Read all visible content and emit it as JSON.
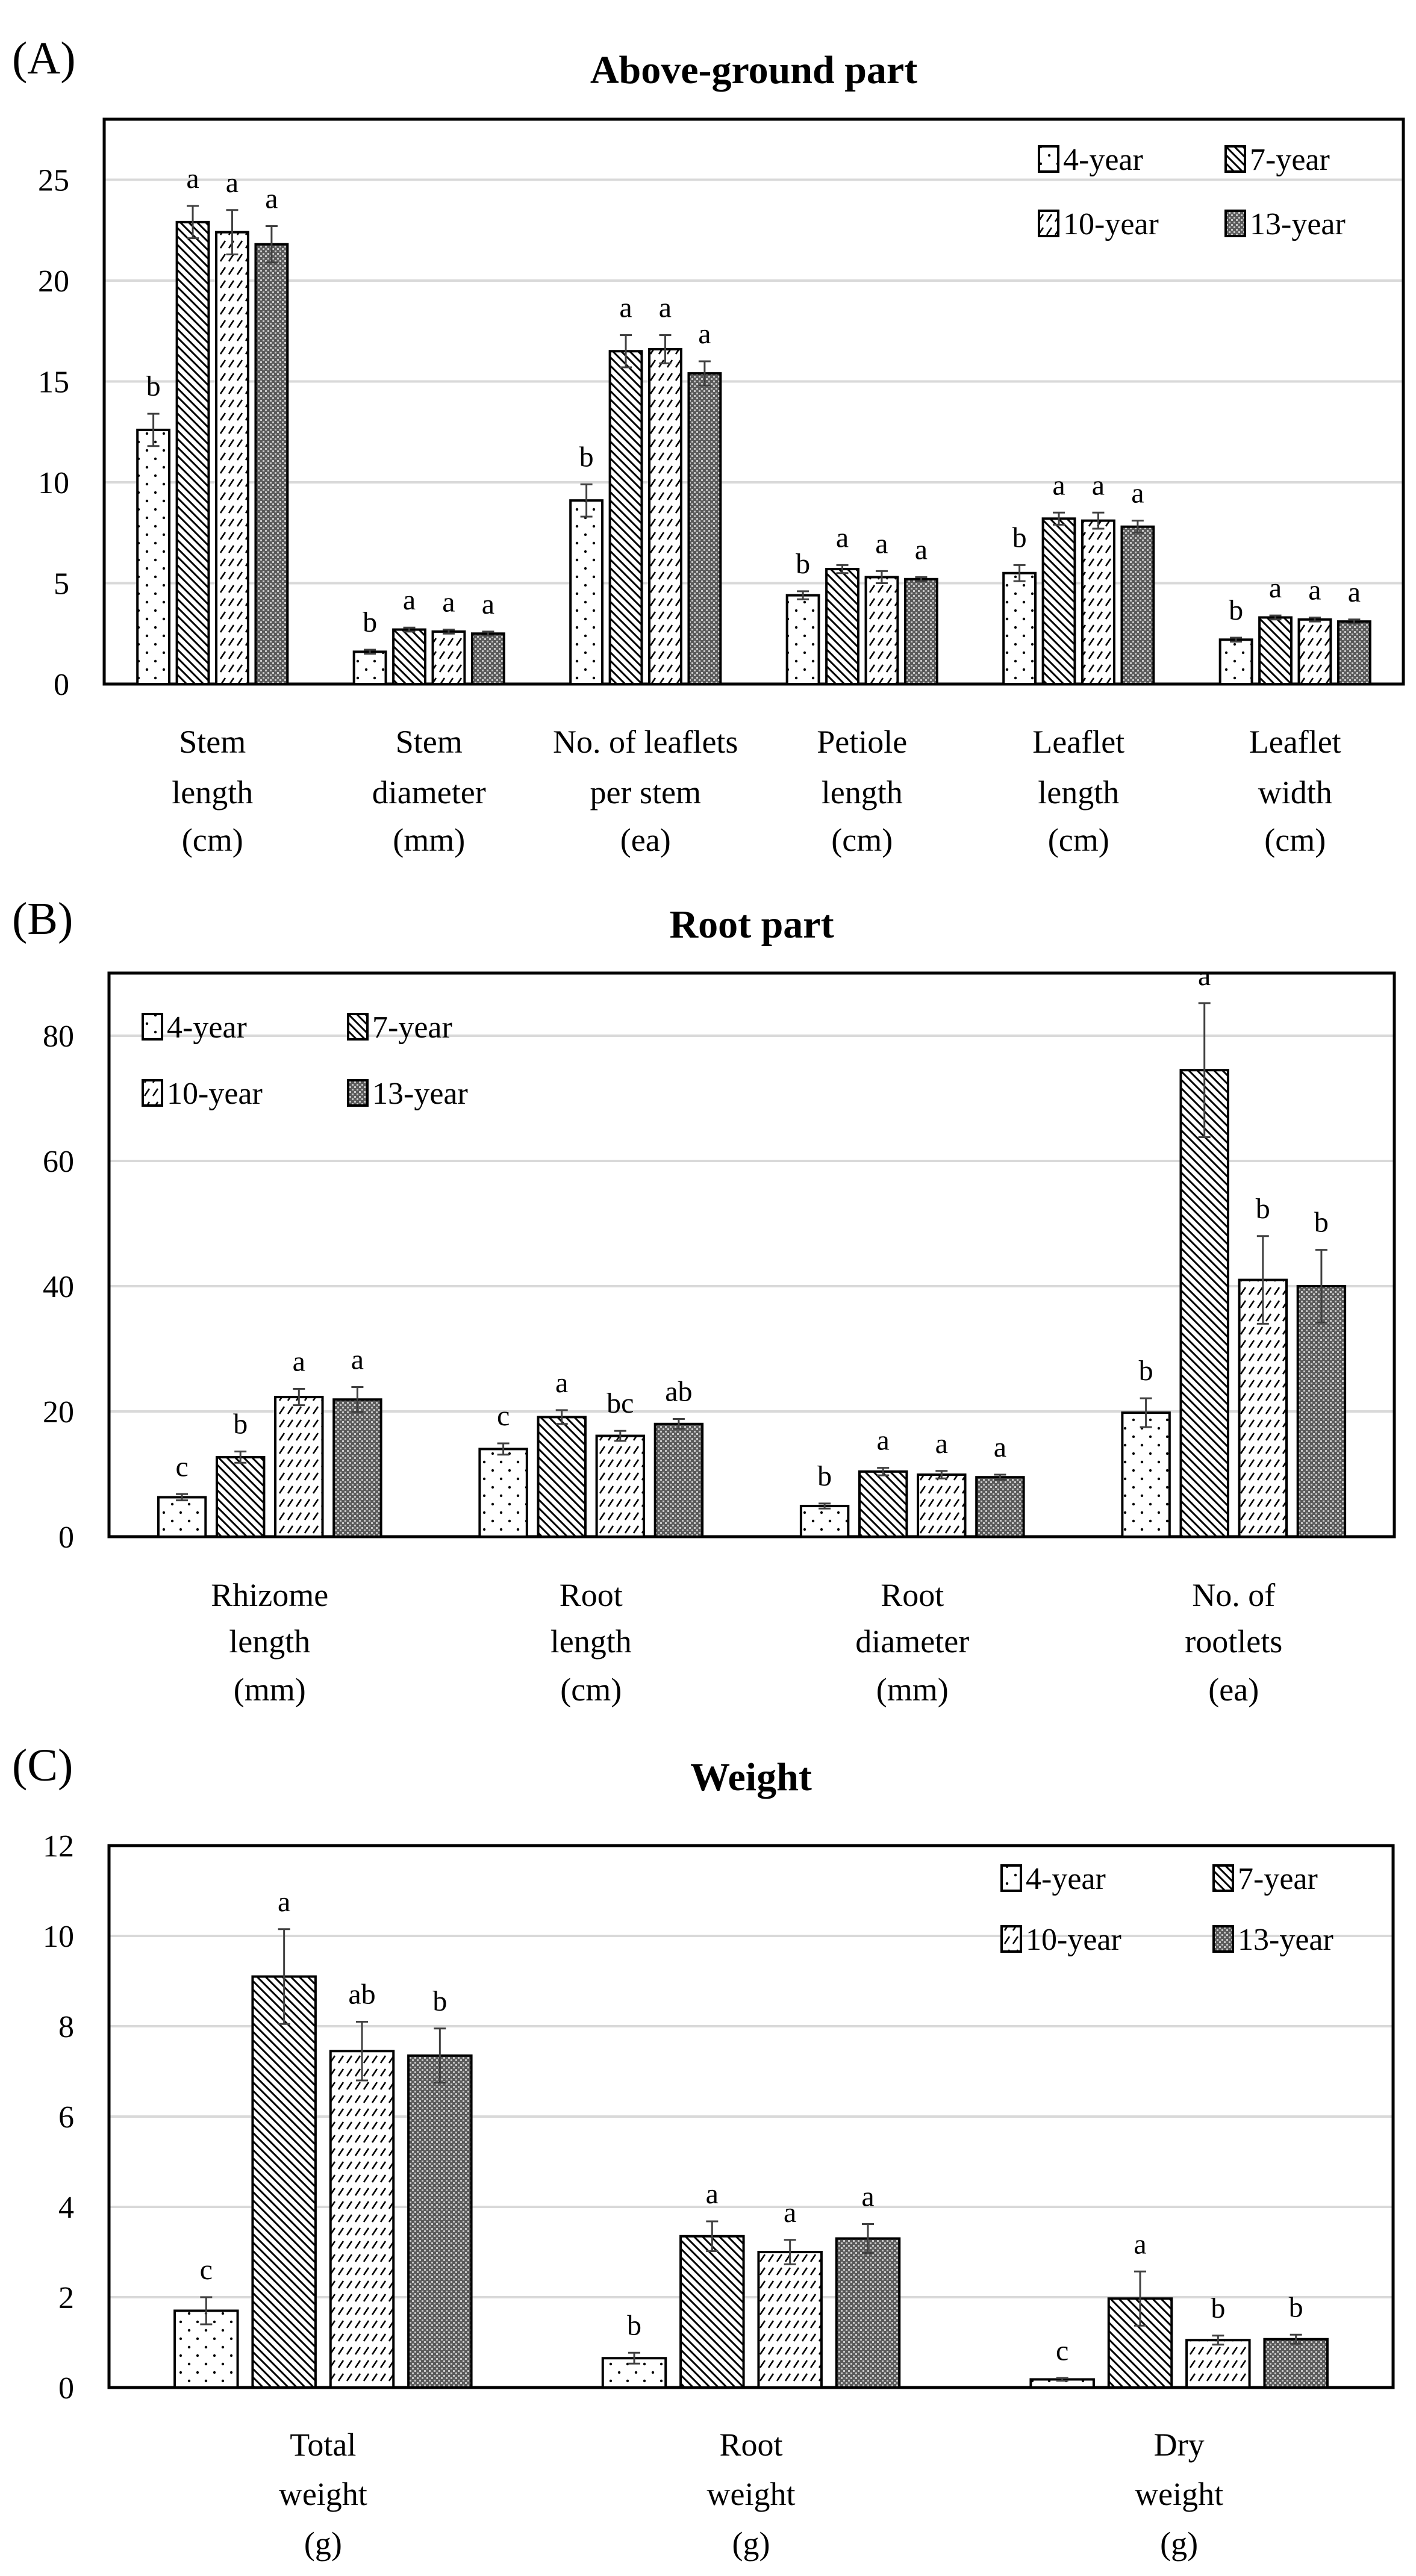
{
  "legend": [
    "4-year",
    "7-year",
    "10-year",
    "13-year"
  ],
  "colors": {
    "axis": "#000000",
    "grid": "#d9d9d9",
    "errorbar": "#404040",
    "dark_fill": "#5a5a5a"
  },
  "chart_data": [
    {
      "type": "bar",
      "panel_label": "(A)",
      "title": "Above-ground part",
      "legend_position": "top-right",
      "ylim": [
        0,
        28
      ],
      "yticks": [
        0,
        5,
        10,
        15,
        20,
        25
      ],
      "grid": true,
      "categories": [
        [
          "Stem",
          "length",
          "(cm)"
        ],
        [
          "Stem",
          "diameter",
          "(mm)"
        ],
        [
          "No. of leaflets",
          "per stem",
          "(ea)"
        ],
        [
          "Petiole",
          "length",
          "(cm)"
        ],
        [
          "Leaflet",
          "length",
          "(cm)"
        ],
        [
          "Leaflet",
          "width",
          "(cm)"
        ]
      ],
      "series": [
        {
          "name": "4-year",
          "values": [
            12.6,
            1.6,
            9.1,
            4.4,
            5.5,
            2.2
          ],
          "errors": [
            0.8,
            0.1,
            0.8,
            0.2,
            0.4,
            0.1
          ],
          "letters": [
            "b",
            "b",
            "b",
            "b",
            "b",
            "b"
          ]
        },
        {
          "name": "7-year",
          "values": [
            22.9,
            2.7,
            16.5,
            5.7,
            8.2,
            3.3
          ],
          "errors": [
            0.8,
            0.1,
            0.8,
            0.2,
            0.3,
            0.1
          ],
          "letters": [
            "a",
            "a",
            "a",
            "a",
            "a",
            "a"
          ]
        },
        {
          "name": "10-year",
          "values": [
            22.4,
            2.6,
            16.6,
            5.3,
            8.1,
            3.2
          ],
          "errors": [
            1.1,
            0.1,
            0.7,
            0.3,
            0.4,
            0.1
          ],
          "letters": [
            "a",
            "a",
            "a",
            "a",
            "a",
            "a"
          ]
        },
        {
          "name": "13-year",
          "values": [
            21.8,
            2.5,
            15.4,
            5.2,
            7.8,
            3.1
          ],
          "errors": [
            0.9,
            0.1,
            0.6,
            0.1,
            0.3,
            0.1
          ],
          "letters": [
            "a",
            "a",
            "a",
            "a",
            "a",
            "a"
          ]
        }
      ]
    },
    {
      "type": "bar",
      "panel_label": "(B)",
      "title": "Root part",
      "legend_position": "top-left",
      "ylim": [
        0,
        90
      ],
      "yticks": [
        0,
        20,
        40,
        60,
        80
      ],
      "grid": true,
      "categories": [
        [
          "Rhizome",
          "length",
          "(mm)"
        ],
        [
          "Root",
          "length",
          "(cm)"
        ],
        [
          "Root",
          "diameter",
          "(mm)"
        ],
        [
          "No. of",
          "rootlets",
          "(ea)"
        ]
      ],
      "series": [
        {
          "name": "4-year",
          "values": [
            6.3,
            14.0,
            4.9,
            19.8
          ],
          "errors": [
            0.5,
            0.9,
            0.4,
            2.3
          ],
          "letters": [
            "c",
            "c",
            "b",
            "b"
          ]
        },
        {
          "name": "7-year",
          "values": [
            12.7,
            19.1,
            10.4,
            74.5
          ],
          "errors": [
            0.9,
            1.1,
            0.6,
            10.7
          ],
          "letters": [
            "b",
            "a",
            "a",
            "a"
          ]
        },
        {
          "name": "10-year",
          "values": [
            22.3,
            16.1,
            9.9,
            41.0
          ],
          "errors": [
            1.3,
            0.8,
            0.6,
            7.0
          ],
          "letters": [
            "a",
            "bc",
            "a",
            "b"
          ]
        },
        {
          "name": "13-year",
          "values": [
            21.9,
            18.0,
            9.5,
            40.0
          ],
          "errors": [
            2.0,
            0.8,
            0.4,
            5.8
          ],
          "letters": [
            "a",
            "ab",
            "a",
            "b"
          ]
        }
      ]
    },
    {
      "type": "bar",
      "panel_label": "(C)",
      "title": "Weight",
      "legend_position": "top-right",
      "ylim": [
        0,
        12
      ],
      "yticks": [
        0,
        2,
        4,
        6,
        8,
        10,
        12
      ],
      "grid": true,
      "categories": [
        [
          "Total",
          "weight",
          "(g)"
        ],
        [
          "Root",
          "weight",
          "(g)"
        ],
        [
          "Dry",
          "weight",
          "(g)"
        ]
      ],
      "series": [
        {
          "name": "4-year",
          "values": [
            1.7,
            0.65,
            0.18
          ],
          "errors": [
            0.3,
            0.12,
            0.03
          ],
          "letters": [
            "c",
            "b",
            "c"
          ]
        },
        {
          "name": "7-year",
          "values": [
            9.1,
            3.35,
            1.97
          ],
          "errors": [
            1.05,
            0.33,
            0.6
          ],
          "letters": [
            "a",
            "a",
            "a"
          ]
        },
        {
          "name": "10-year",
          "values": [
            7.45,
            3.0,
            1.05
          ],
          "errors": [
            0.65,
            0.27,
            0.1
          ],
          "letters": [
            "ab",
            "a",
            "b"
          ]
        },
        {
          "name": "13-year",
          "values": [
            7.35,
            3.3,
            1.07
          ],
          "errors": [
            0.6,
            0.32,
            0.1
          ],
          "letters": [
            "b",
            "a",
            "b"
          ]
        }
      ]
    }
  ]
}
